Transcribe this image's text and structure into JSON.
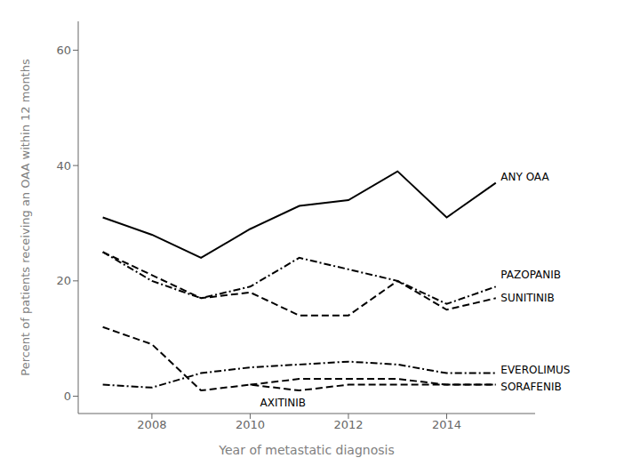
{
  "chart_data": {
    "type": "line",
    "xlabel": "Year of metastatic diagnosis",
    "ylabel": "Percent of patients receiving an OAA within 12 months",
    "x": [
      2007,
      2008,
      2009,
      2010,
      2011,
      2012,
      2013,
      2014,
      2015
    ],
    "series": [
      {
        "name": "ANY OAA",
        "color": "#000000",
        "line_style": "solid",
        "values": [
          31,
          28,
          24,
          29,
          33,
          34,
          39,
          31,
          37
        ]
      },
      {
        "name": "PAZOPANIB",
        "color": "#000000",
        "line_style": "dashdot",
        "values": [
          25,
          20,
          17,
          19,
          24,
          22,
          20,
          16,
          19
        ]
      },
      {
        "name": "SUNITINIB",
        "color": "#000000",
        "line_style": "dashed",
        "values": [
          25,
          21,
          17,
          18,
          14,
          14,
          20,
          15,
          17
        ]
      },
      {
        "name": "SORAFENIB",
        "color": "#000000",
        "line_style": "dashed",
        "values": [
          12,
          9,
          1,
          2,
          1,
          2,
          2,
          2,
          2
        ]
      },
      {
        "name": "EVEROLIMUS",
        "color": "#000000",
        "line_style": "dashdot",
        "values": [
          2,
          1.5,
          4,
          5,
          5.5,
          6,
          5.5,
          4,
          4
        ]
      },
      {
        "name": "AXITINIB",
        "color": "#000000",
        "line_style": "dashed",
        "values": [
          null,
          null,
          null,
          2,
          3,
          3,
          3,
          2,
          2
        ]
      }
    ],
    "annotations": [
      {
        "text": "ANY OAA",
        "x": 2015.1,
        "y": 38
      },
      {
        "text": "PAZOPANIB",
        "x": 2015.1,
        "y": 21
      },
      {
        "text": "SUNITINIB",
        "x": 2015.1,
        "y": 17
      },
      {
        "text": "EVEROLIMUS",
        "x": 2015.1,
        "y": 4.5
      },
      {
        "text": "SORAFENIB",
        "x": 2015.1,
        "y": 1.5
      },
      {
        "text": "AXITINIB",
        "x": 2010.2,
        "y": -1.2
      }
    ],
    "xlim": [
      2006.5,
      2015.8
    ],
    "xticks": [
      2008,
      2010,
      2012,
      2014
    ],
    "ylim": [
      -3,
      65
    ],
    "yticks": [
      0,
      20,
      40,
      60
    ],
    "grid": false
  }
}
